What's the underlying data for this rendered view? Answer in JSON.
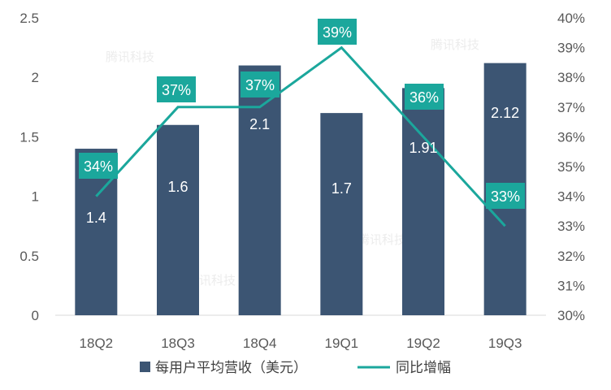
{
  "chart_data": {
    "type": "bar+line",
    "categories": [
      "18Q2",
      "18Q3",
      "18Q4",
      "19Q1",
      "19Q2",
      "19Q3"
    ],
    "series": [
      {
        "name": "每用户平均营收（美元）",
        "type": "bar",
        "axis": "left",
        "values": [
          1.4,
          1.6,
          2.1,
          1.7,
          1.91,
          2.12
        ],
        "labels": [
          "1.4",
          "1.6",
          "2.1",
          "1.7",
          "1.91",
          "2.12"
        ]
      },
      {
        "name": "同比增幅",
        "type": "line",
        "axis": "right",
        "values": [
          34,
          37,
          37,
          39,
          36,
          33
        ],
        "labels": [
          "34%",
          "37%",
          "37%",
          "39%",
          "36%",
          "33%"
        ]
      }
    ],
    "left_axis": {
      "ylim": [
        0,
        2.5
      ],
      "ticks": [
        "0",
        "0.5",
        "1",
        "1.5",
        "2",
        "2.5"
      ]
    },
    "right_axis": {
      "ylim": [
        30,
        40
      ],
      "ticks": [
        "30%",
        "31%",
        "32%",
        "33%",
        "34%",
        "35%",
        "36%",
        "37%",
        "38%",
        "39%",
        "40%"
      ]
    },
    "grid": false,
    "legend_position": "bottom",
    "colors": {
      "bar": "#3c5573",
      "line": "#1ba79c",
      "tick": "#595959"
    },
    "watermark": "腾讯科技"
  }
}
